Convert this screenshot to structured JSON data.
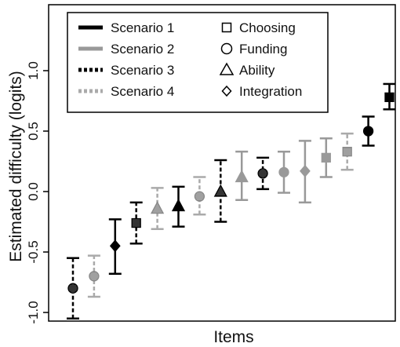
{
  "chart_data": {
    "type": "scatter",
    "title": "",
    "xlabel": "Items",
    "ylabel": "Estimated difficulty (logits)",
    "ylim": [
      -1.1,
      1.5
    ],
    "yticks": [
      -1.0,
      -0.5,
      0.0,
      0.5,
      1.0
    ],
    "ytick_labels": [
      "-1.0",
      "-0.5",
      "0.0",
      "0.5",
      "1.0"
    ],
    "grid": false,
    "legend_position": "top-left",
    "scenario_legend": [
      {
        "label": "Scenario 1",
        "color": "#000000",
        "dash": "solid"
      },
      {
        "label": "Scenario 2",
        "color": "#999999",
        "dash": "solid"
      },
      {
        "label": "Scenario 3",
        "color": "#000000",
        "dash": "dashed"
      },
      {
        "label": "Scenario 4",
        "color": "#aaaaaa",
        "dash": "dashed"
      }
    ],
    "type_legend": [
      {
        "label": "Choosing",
        "marker": "square"
      },
      {
        "label": "Funding",
        "marker": "circle"
      },
      {
        "label": "Ability",
        "marker": "triangle"
      },
      {
        "label": "Integration",
        "marker": "diamond"
      }
    ],
    "items": [
      {
        "scenario": 3,
        "marker": "circle",
        "estimate": -0.8,
        "lower": -1.05,
        "upper": -0.55
      },
      {
        "scenario": 4,
        "marker": "circle",
        "estimate": -0.7,
        "lower": -0.87,
        "upper": -0.53
      },
      {
        "scenario": 1,
        "marker": "diamond",
        "estimate": -0.45,
        "lower": -0.68,
        "upper": -0.23
      },
      {
        "scenario": 3,
        "marker": "square",
        "estimate": -0.26,
        "lower": -0.43,
        "upper": -0.09
      },
      {
        "scenario": 4,
        "marker": "triangle",
        "estimate": -0.14,
        "lower": -0.31,
        "upper": 0.03
      },
      {
        "scenario": 1,
        "marker": "triangle",
        "estimate": -0.12,
        "lower": -0.29,
        "upper": 0.04
      },
      {
        "scenario": 4,
        "marker": "circle",
        "estimate": -0.04,
        "lower": -0.19,
        "upper": 0.12
      },
      {
        "scenario": 3,
        "marker": "triangle",
        "estimate": 0.0,
        "lower": -0.25,
        "upper": 0.26
      },
      {
        "scenario": 2,
        "marker": "triangle",
        "estimate": 0.12,
        "lower": -0.07,
        "upper": 0.33
      },
      {
        "scenario": 3,
        "marker": "circle",
        "estimate": 0.15,
        "lower": 0.02,
        "upper": 0.28
      },
      {
        "scenario": 2,
        "marker": "circle",
        "estimate": 0.16,
        "lower": -0.01,
        "upper": 0.33
      },
      {
        "scenario": 2,
        "marker": "diamond",
        "estimate": 0.17,
        "lower": -0.09,
        "upper": 0.42
      },
      {
        "scenario": 2,
        "marker": "square",
        "estimate": 0.28,
        "lower": 0.12,
        "upper": 0.44
      },
      {
        "scenario": 4,
        "marker": "square",
        "estimate": 0.33,
        "lower": 0.18,
        "upper": 0.48
      },
      {
        "scenario": 1,
        "marker": "circle",
        "estimate": 0.5,
        "lower": 0.38,
        "upper": 0.62
      },
      {
        "scenario": 1,
        "marker": "square",
        "estimate": 0.78,
        "lower": 0.68,
        "upper": 0.89
      }
    ]
  }
}
